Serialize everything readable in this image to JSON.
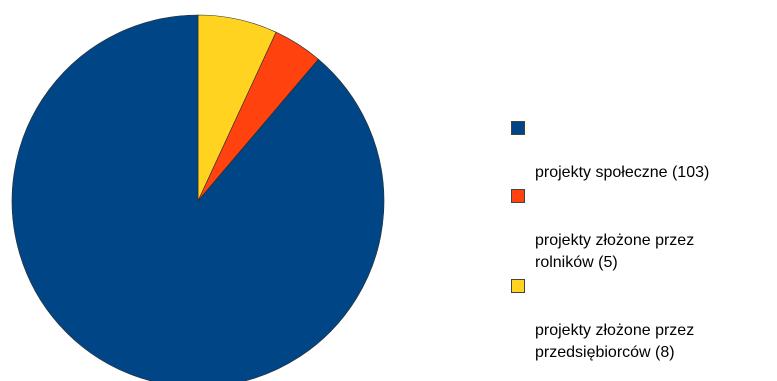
{
  "chart_data": {
    "type": "pie",
    "title": "",
    "slices": [
      {
        "label": "projekty społeczne (103)",
        "value": 103,
        "color": "#004586"
      },
      {
        "label": "projekty złożone przez\nrolników  (5)",
        "value": 5,
        "color": "#ff420e"
      },
      {
        "label": "projekty złożone przez\nprzedsiębiorców  (8)",
        "value": 8,
        "color": "#ffd320"
      }
    ],
    "legend_position": "right"
  }
}
